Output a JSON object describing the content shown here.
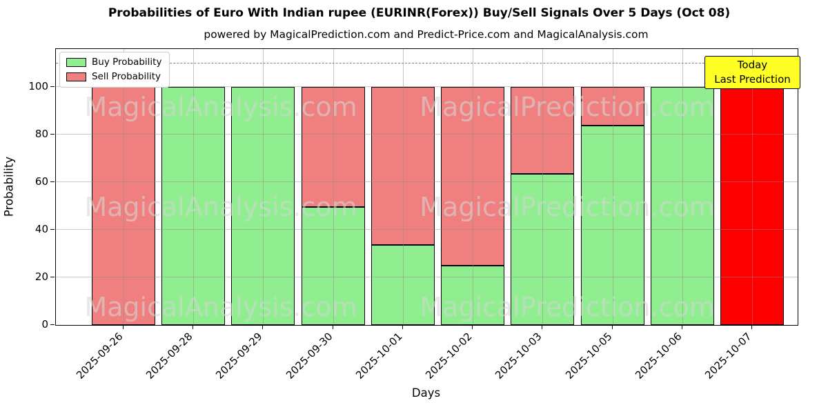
{
  "title": "Probabilities of Euro With Indian rupee (EURINR(Forex)) Buy/Sell Signals Over 5 Days (Oct 08)",
  "subtitle": "powered by MagicalPrediction.com and Predict-Price.com and MagicalAnalysis.com",
  "legend": {
    "items": [
      {
        "label": "Buy Probability",
        "color": "#90ee90"
      },
      {
        "label": "Sell Probability",
        "color": "#f08080"
      }
    ]
  },
  "annotation": {
    "line1": "Today",
    "line2": "Last Prediction",
    "bg_color": "#ffff26"
  },
  "watermarks": {
    "left": "MagicalAnalysis.com",
    "right": "MagicalPrediction.com"
  },
  "axes": {
    "xlabel": "Days",
    "ylabel": "Probability",
    "yticks": [
      0,
      20,
      40,
      60,
      80,
      100
    ],
    "ymax": 116,
    "dashed_line_y": 110,
    "grid": true
  },
  "chart_data": {
    "type": "bar",
    "stacked": true,
    "categories": [
      "2025-09-26",
      "2025-09-28",
      "2025-09-29",
      "2025-09-30",
      "2025-10-01",
      "2025-10-02",
      "2025-10-03",
      "2025-10-05",
      "2025-10-06",
      "2025-10-07"
    ],
    "series": [
      {
        "name": "Buy Probability",
        "color": "#90ee90",
        "values": [
          0,
          100,
          100,
          49.7,
          33.5,
          25.0,
          63.5,
          83.7,
          100,
          0
        ]
      },
      {
        "name": "Sell Probability",
        "color": "#f08080",
        "values": [
          100,
          0,
          0,
          50.3,
          66.5,
          75.0,
          36.5,
          16.3,
          0,
          100
        ]
      }
    ],
    "today_index": 9,
    "today_color": "#ff0000",
    "bar_edge_color": "#000000",
    "ylim": [
      0,
      116
    ],
    "title": "Probabilities of Euro With Indian rupee (EURINR(Forex)) Buy/Sell Signals Over 5 Days (Oct 08)",
    "xlabel": "Days",
    "ylabel": "Probability"
  }
}
